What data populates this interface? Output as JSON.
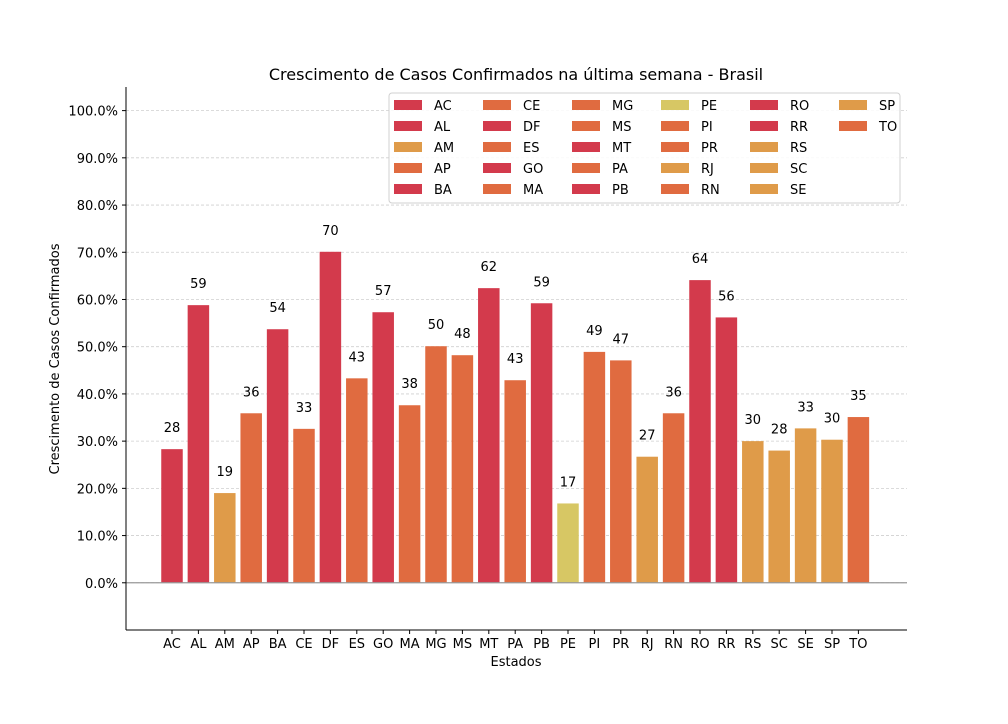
{
  "chart_data": {
    "type": "bar",
    "title": "Crescimento de Casos Confirmados na última semana - Brasil",
    "xlabel": "Estados",
    "ylabel": "Crescimento de Casos Confirmados",
    "categories": [
      "AC",
      "AL",
      "AM",
      "AP",
      "BA",
      "CE",
      "DF",
      "ES",
      "GO",
      "MA",
      "MG",
      "MS",
      "MT",
      "PA",
      "PB",
      "PE",
      "PI",
      "PR",
      "RJ",
      "RN",
      "RO",
      "RR",
      "RS",
      "SC",
      "SE",
      "SP",
      "TO"
    ],
    "values": [
      28.3,
      58.8,
      19.0,
      35.9,
      53.7,
      32.6,
      70.1,
      43.3,
      57.3,
      37.6,
      50.1,
      48.2,
      62.4,
      42.9,
      59.2,
      16.8,
      48.9,
      47.1,
      26.7,
      35.9,
      64.1,
      56.2,
      30.0,
      28.0,
      32.7,
      30.3,
      35.1
    ],
    "data_labels": [
      "28",
      "59",
      "19",
      "36",
      "54",
      "33",
      "70",
      "43",
      "57",
      "38",
      "50",
      "48",
      "62",
      "43",
      "59",
      "17",
      "49",
      "47",
      "27",
      "36",
      "64",
      "56",
      "30",
      "28",
      "33",
      "30",
      "35"
    ],
    "colors": [
      "#d33a4c",
      "#d33a4c",
      "#df9b49",
      "#e06b40",
      "#d33a4c",
      "#e06b40",
      "#d33a4c",
      "#e06b40",
      "#d33a4c",
      "#e06b40",
      "#e06b40",
      "#e06b40",
      "#d33a4c",
      "#e06b40",
      "#d33a4c",
      "#d7c764",
      "#e06b40",
      "#e06b40",
      "#df9b49",
      "#e06b40",
      "#d33a4c",
      "#d33a4c",
      "#df9b49",
      "#df9b49",
      "#df9b49",
      "#df9b49",
      "#e06b40"
    ],
    "ylim": [
      -10,
      105
    ],
    "yticks": [
      0,
      10,
      20,
      30,
      40,
      50,
      60,
      70,
      80,
      90,
      100
    ],
    "ytick_labels": [
      "0.0%",
      "10.0%",
      "20.0%",
      "30.0%",
      "40.0%",
      "50.0%",
      "60.0%",
      "70.0%",
      "80.0%",
      "90.0%",
      "100.0%"
    ],
    "grid": true,
    "legend": {
      "placement": "top-right",
      "columns": 6
    }
  }
}
